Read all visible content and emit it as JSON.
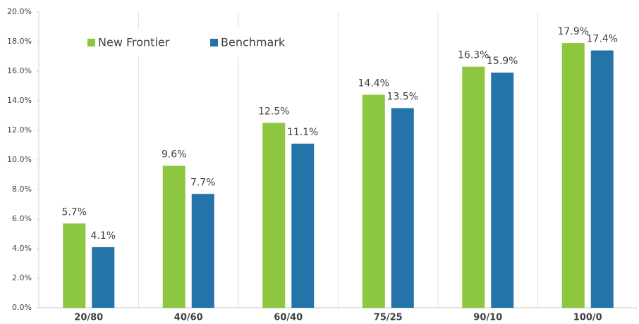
{
  "chart_data": {
    "type": "bar",
    "categories": [
      "20/80",
      "40/60",
      "60/40",
      "75/25",
      "90/10",
      "100/0"
    ],
    "series": [
      {
        "name": "New Frontier",
        "color": "#8dc63f",
        "values": [
          5.7,
          9.6,
          12.5,
          14.4,
          16.3,
          17.9
        ],
        "value_labels": [
          "5.7%",
          "9.6%",
          "12.5%",
          "14.4%",
          "16.3%",
          "17.9%"
        ]
      },
      {
        "name": "Benchmark",
        "color": "#2574a9",
        "values": [
          4.1,
          7.7,
          11.1,
          13.5,
          15.9,
          17.4
        ],
        "value_labels": [
          "4.1%",
          "7.7%",
          "11.1%",
          "13.5%",
          "15.9%",
          "17.4%"
        ]
      }
    ],
    "ylim": [
      0,
      20
    ],
    "yticks": [
      {
        "value": 0,
        "label": "0.0%"
      },
      {
        "value": 2,
        "label": "2.0%"
      },
      {
        "value": 4,
        "label": "4.0%"
      },
      {
        "value": 6,
        "label": "6.0%"
      },
      {
        "value": 8,
        "label": "8.0%"
      },
      {
        "value": 10,
        "label": "10.0%"
      },
      {
        "value": 12,
        "label": "12.0%"
      },
      {
        "value": 14,
        "label": "14.0%"
      },
      {
        "value": 16,
        "label": "16.0%"
      },
      {
        "value": 18,
        "label": "18.0%"
      },
      {
        "value": 20,
        "label": "20.0%"
      }
    ],
    "legend": "top-left"
  }
}
